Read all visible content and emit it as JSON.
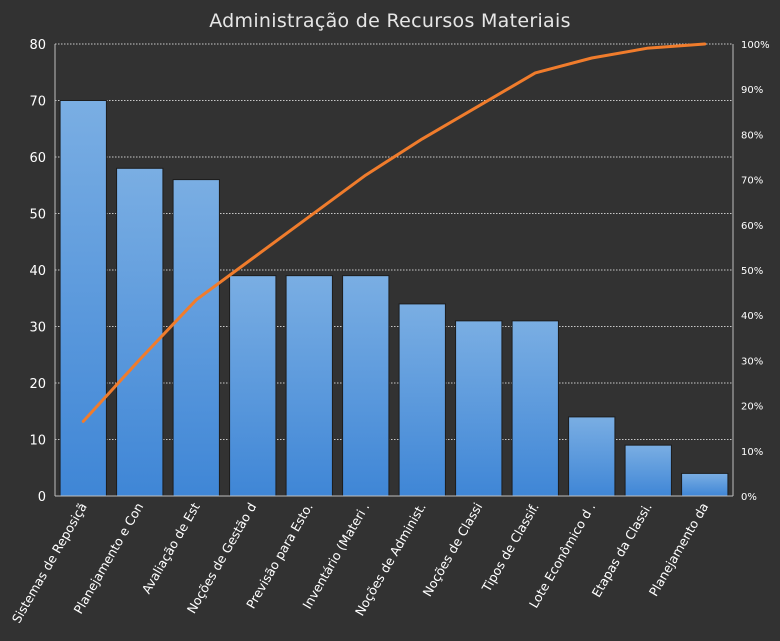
{
  "chart_data": {
    "type": "bar",
    "title": "Administração de Recursos Materiais",
    "categories": [
      "Sistemas de Reposiçã",
      "Planejamento e Con",
      "Avaliação de Est",
      "Noções de Gestão d",
      "Previsão para Esto.",
      "Inventário (Materi .",
      "Noções de Administ.",
      "Noções de Classi",
      "Tipos de Classif.",
      "Lote Econômico d .",
      "Etapas da Classi.",
      "Planejamento da"
    ],
    "series": [
      {
        "type": "bar",
        "values": [
          70,
          58,
          56,
          39,
          39,
          39,
          34,
          31,
          31,
          14,
          9,
          4
        ]
      },
      {
        "type": "line",
        "axis": "secondary",
        "values": [
          0.165,
          0.302,
          0.434,
          0.526,
          0.618,
          0.71,
          0.79,
          0.863,
          0.936,
          0.969,
          0.991,
          1.0
        ]
      }
    ],
    "ylim": [
      0,
      80
    ],
    "yticks": [
      "0",
      "10",
      "20",
      "30",
      "40",
      "50",
      "60",
      "70",
      "80"
    ],
    "y2lim": [
      0,
      1
    ],
    "y2ticks": [
      "0%",
      "10%",
      "20%",
      "30%",
      "40%",
      "50%",
      "60%",
      "70%",
      "80%",
      "90%",
      "100%"
    ],
    "grid": true,
    "colors": {
      "background": "#323232",
      "bar_top": "#7aaee3",
      "bar_bottom": "#3f86d6",
      "line": "#f07c2c",
      "grid": "#c8c8c8",
      "text": "#ffffff"
    }
  }
}
